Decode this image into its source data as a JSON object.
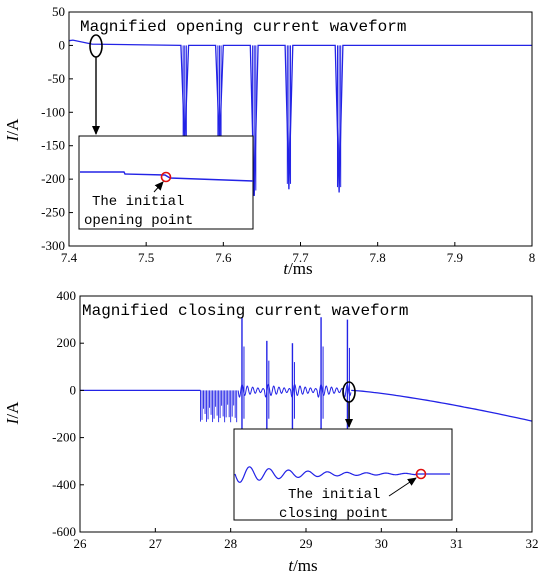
{
  "colors": {
    "trace": "#2323e6",
    "marker": "#e01010",
    "axis": "#000000"
  },
  "chart_data": [
    {
      "type": "line",
      "title": "Magnified opening current waveform",
      "xlabel_var": "t",
      "xlabel_unit": "/ms",
      "ylabel_var": "I",
      "ylabel_unit": "/A",
      "xlim": [
        7.4,
        8.0
      ],
      "ylim": [
        -300,
        50
      ],
      "xticks": [
        "7.4",
        "7.5",
        "7.6",
        "7.7",
        "7.8",
        "7.9",
        "8"
      ],
      "yticks": [
        "50",
        "0",
        "-50",
        "-100",
        "-150",
        "-200",
        "-250",
        "-300"
      ],
      "series": [
        {
          "x": [
            7.4,
            7.405,
            7.43,
            7.545,
            7.55,
            7.555,
            7.59,
            7.595,
            7.6,
            7.635,
            7.64,
            7.645,
            7.68,
            7.685,
            7.69,
            7.745,
            7.75,
            7.755,
            8.0
          ],
          "y": [
            7,
            8,
            2,
            0,
            -150,
            0,
            0,
            -150,
            0,
            0,
            -225,
            0,
            0,
            -215,
            0,
            0,
            -220,
            0,
            0
          ]
        }
      ],
      "inset": {
        "annotation": [
          "The initial",
          "opening point"
        ]
      }
    },
    {
      "type": "line",
      "title": "Magnified closing current waveform",
      "xlabel_var": "t",
      "xlabel_unit": "/ms",
      "ylabel_var": "I",
      "ylabel_unit": "/A",
      "xlim": [
        26,
        32
      ],
      "ylim": [
        -600,
        400
      ],
      "xticks": [
        "26",
        "27",
        "28",
        "29",
        "30",
        "31",
        "32"
      ],
      "yticks": [
        "400",
        "200",
        "0",
        "-200",
        "-400",
        "-600"
      ],
      "series": [
        {
          "x": [
            26,
            27.6,
            27.6,
            28.1,
            28.1,
            28.2,
            28.48,
            28.82,
            29.2,
            29.55,
            29.6,
            30.0,
            31.0,
            32.0
          ],
          "y": [
            0,
            0,
            -135,
            -135,
            0,
            310,
            210,
            200,
            310,
            300,
            0,
            -15,
            -60,
            -130
          ]
        }
      ],
      "inset": {
        "annotation": [
          "The initial",
          "closing point"
        ]
      }
    }
  ]
}
